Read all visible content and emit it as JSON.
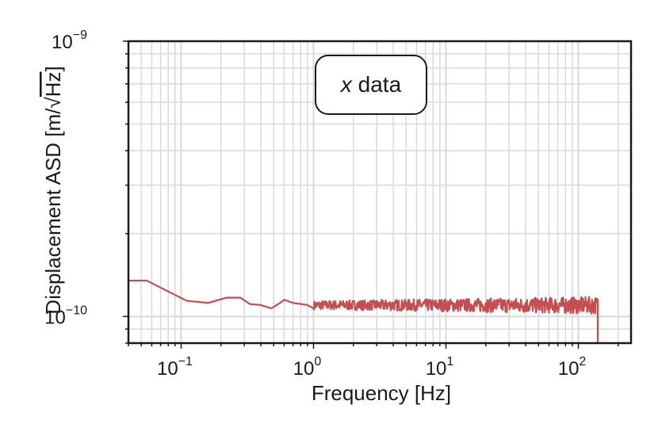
{
  "chart_data": {
    "type": "line",
    "xscale": "log",
    "yscale": "log",
    "xlim": [
      0.04,
      250
    ],
    "ylim": [
      8e-11,
      1e-09
    ],
    "grid": true,
    "xlabel": "Frequency [Hz]",
    "ylabel": {
      "main": "Displacement ASD [m/",
      "sqrt_symbol": "√",
      "radicand": "Hz",
      "close": "]"
    },
    "annotation": {
      "var": "x",
      "rest": " data"
    },
    "x_ticks": [
      {
        "base": "10",
        "exp": "−1",
        "value": 0.1
      },
      {
        "base": "10",
        "exp": "0",
        "value": 1
      },
      {
        "base": "10",
        "exp": "1",
        "value": 10
      },
      {
        "base": "10",
        "exp": "2",
        "value": 100
      }
    ],
    "y_ticks": [
      {
        "base": "10",
        "exp": "−10",
        "value": 1e-10
      },
      {
        "base": "10",
        "exp": "−9",
        "value": 1e-09
      }
    ],
    "series": [
      {
        "color": "#c44e52",
        "x": [
          0.04,
          0.055,
          0.11,
          0.16,
          0.22,
          0.28,
          0.33,
          0.4,
          0.48,
          0.56,
          0.6,
          0.7,
          0.8,
          0.9,
          1.0
        ],
        "y": [
          1.35e-10,
          1.35e-10,
          1.14e-10,
          1.12e-10,
          1.17e-10,
          1.17e-10,
          1.11e-10,
          1.1e-10,
          1.07e-10,
          1.12e-10,
          1.15e-10,
          1.12e-10,
          1.11e-10,
          1.1e-10,
          1.07e-10
        ],
        "noise": {
          "from": 1.0,
          "to": 140,
          "level": 1.1e-10,
          "amplitude": 0.06,
          "final_drop_to": 8e-11
        }
      }
    ]
  }
}
